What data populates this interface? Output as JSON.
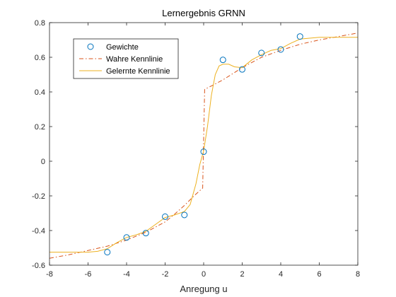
{
  "chart_data": {
    "type": "line",
    "title": "Lernergebnis GRNN",
    "xlabel": "Anregung u",
    "ylabel": "",
    "xlim": [
      -8,
      8
    ],
    "ylim": [
      -0.6,
      0.8
    ],
    "xticks": [
      -8,
      -6,
      -4,
      -2,
      0,
      2,
      4,
      6,
      8
    ],
    "yticks": [
      -0.6,
      -0.4,
      -0.2,
      0,
      0.2,
      0.4,
      0.6,
      0.8
    ],
    "xtick_labels": [
      "-8",
      "-6",
      "-4",
      "-2",
      "0",
      "2",
      "4",
      "6",
      "8"
    ],
    "ytick_labels": [
      "-0.6",
      "-0.4",
      "-0.2",
      "0",
      "0.2",
      "0.4",
      "0.6",
      "0.8"
    ],
    "grid": false,
    "legend_position": "top-left",
    "series": [
      {
        "name": "Gewichte",
        "style": "markers",
        "color": "#0072BD",
        "points": [
          [
            -5,
            -0.525
          ],
          [
            -4,
            -0.44
          ],
          [
            -3,
            -0.415
          ],
          [
            -2,
            -0.32
          ],
          [
            -1,
            -0.31
          ],
          [
            0,
            0.055
          ],
          [
            1,
            0.585
          ],
          [
            2,
            0.53
          ],
          [
            3,
            0.625
          ],
          [
            4,
            0.645
          ],
          [
            5,
            0.72
          ]
        ]
      },
      {
        "name": "Wahre Kennlinie",
        "style": "dash-dot",
        "color": "#D95319",
        "points": [
          [
            -8,
            -0.56
          ],
          [
            -7,
            -0.54
          ],
          [
            -6,
            -0.515
          ],
          [
            -5,
            -0.49
          ],
          [
            -4,
            -0.455
          ],
          [
            -3,
            -0.41
          ],
          [
            -2,
            -0.35
          ],
          [
            -1.5,
            -0.305
          ],
          [
            -1,
            -0.255
          ],
          [
            -0.5,
            -0.2
          ],
          [
            -0.05,
            -0.155
          ],
          [
            0.05,
            0.415
          ],
          [
            0.5,
            0.44
          ],
          [
            1,
            0.47
          ],
          [
            2,
            0.54
          ],
          [
            3,
            0.6
          ],
          [
            4,
            0.64
          ],
          [
            5,
            0.675
          ],
          [
            6,
            0.7
          ],
          [
            7,
            0.72
          ],
          [
            8,
            0.74
          ]
        ]
      },
      {
        "name": "Gelernte Kennlinie",
        "style": "solid",
        "color": "#EDB120",
        "points": [
          [
            -8,
            -0.525
          ],
          [
            -7,
            -0.525
          ],
          [
            -6,
            -0.525
          ],
          [
            -5.5,
            -0.52
          ],
          [
            -5,
            -0.505
          ],
          [
            -4.5,
            -0.47
          ],
          [
            -4,
            -0.44
          ],
          [
            -3.5,
            -0.425
          ],
          [
            -3,
            -0.405
          ],
          [
            -2.5,
            -0.365
          ],
          [
            -2,
            -0.325
          ],
          [
            -1.5,
            -0.31
          ],
          [
            -1,
            -0.29
          ],
          [
            -0.7,
            -0.25
          ],
          [
            -0.4,
            -0.13
          ],
          [
            -0.2,
            -0.02
          ],
          [
            0,
            0.06
          ],
          [
            0.2,
            0.2
          ],
          [
            0.4,
            0.38
          ],
          [
            0.6,
            0.5
          ],
          [
            0.8,
            0.55
          ],
          [
            1,
            0.56
          ],
          [
            1.3,
            0.56
          ],
          [
            1.6,
            0.545
          ],
          [
            2,
            0.54
          ],
          [
            2.5,
            0.585
          ],
          [
            3,
            0.615
          ],
          [
            3.5,
            0.64
          ],
          [
            4,
            0.65
          ],
          [
            4.5,
            0.68
          ],
          [
            5,
            0.705
          ],
          [
            6,
            0.715
          ],
          [
            7,
            0.715
          ],
          [
            8,
            0.715
          ]
        ]
      }
    ]
  }
}
